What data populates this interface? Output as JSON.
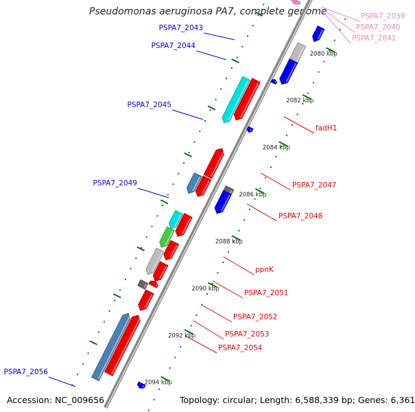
{
  "title": "Pseudomonas aeruginosa PA7, complete genome",
  "footer": {
    "accession": "Accession: NC_009656",
    "topology": "Topology: circular; Length: 6,588,339 bp; Genes: 6,361"
  },
  "colors": {
    "blue": "#0000ee",
    "red": "#ee0000",
    "cyan": "#00e0e0",
    "gray": "#bbbbbb",
    "darkgray": "#666666",
    "steelblue": "#4a82b4",
    "green": "#44cc44",
    "pink": "#ee88bb",
    "tick": "#007700"
  },
  "ticks": [
    {
      "kbp": 2080,
      "label": "2080 kbp"
    },
    {
      "kbp": 2082,
      "label": "2082 kbp"
    },
    {
      "kbp": 2084,
      "label": "2084 kbp"
    },
    {
      "kbp": 2086,
      "label": "2086 kbp"
    },
    {
      "kbp": 2088,
      "label": "2088 kbp"
    },
    {
      "kbp": 2090,
      "label": "2090 kbp"
    },
    {
      "kbp": 2092,
      "label": "2092 kbp"
    },
    {
      "kbp": 2094,
      "label": "2094 kbp"
    }
  ],
  "labels": [
    {
      "name": "PSPA7_2039",
      "color": "pink"
    },
    {
      "name": "PSPA7_2040",
      "color": "pink"
    },
    {
      "name": "PSPA7_2041",
      "color": "pink"
    },
    {
      "name": "PSPA7_2043",
      "color": "blue"
    },
    {
      "name": "PSPA7_2044",
      "color": "blue"
    },
    {
      "name": "PSPA7_2045",
      "color": "blue"
    },
    {
      "name": "PSPA7_2049",
      "color": "blue"
    },
    {
      "name": "PSPA7_2056",
      "color": "blue"
    },
    {
      "name": "fadH1",
      "color": "red"
    },
    {
      "name": "PSPA7_2047",
      "color": "red"
    },
    {
      "name": "PSPA7_2048",
      "color": "red"
    },
    {
      "name": "ppnK",
      "color": "red"
    },
    {
      "name": "PSPA7_2051",
      "color": "red"
    },
    {
      "name": "PSPA7_2052",
      "color": "red"
    },
    {
      "name": "PSPA7_2053",
      "color": "red"
    },
    {
      "name": "PSPA7_2054",
      "color": "red"
    }
  ],
  "features": [
    {
      "ring": 1,
      "start": 2080.3,
      "end": 2081.2,
      "color": "gray"
    },
    {
      "ring": 1,
      "start": 2081.0,
      "end": 2082.0,
      "color": "blue",
      "dir": 1
    },
    {
      "ring": 2,
      "start": 2079.4,
      "end": 2080.0,
      "color": "blue",
      "dir": 1
    },
    {
      "ring": 0,
      "start": 2081.95,
      "end": 2082.1,
      "color": "blue",
      "dir": -1
    },
    {
      "ring": 0,
      "start": 2084.0,
      "end": 2084.2,
      "color": "blue",
      "dir": 1
    },
    {
      "ring": -1,
      "start": 2082.3,
      "end": 2084.0,
      "color": "red",
      "dir": 1
    },
    {
      "ring": -2,
      "start": 2082.4,
      "end": 2084.3,
      "color": "cyan",
      "dir": 1
    },
    {
      "ring": -1,
      "start": 2085.2,
      "end": 2086.4,
      "color": "red",
      "dir": -1
    },
    {
      "ring": -1,
      "start": 2086.45,
      "end": 2087.25,
      "color": "red",
      "dir": 1
    },
    {
      "ring": -2,
      "start": 2086.5,
      "end": 2087.3,
      "color": "steelblue",
      "dir": 1
    },
    {
      "ring": 1,
      "start": 2086.4,
      "end": 2087.0,
      "color": "darkgray"
    },
    {
      "ring": 1,
      "start": 2086.6,
      "end": 2087.5,
      "color": "blue",
      "dir": 1
    },
    {
      "ring": -1,
      "start": 2088.05,
      "end": 2088.95,
      "color": "red",
      "dir": 1
    },
    {
      "ring": -2,
      "start": 2088.1,
      "end": 2088.8,
      "color": "cyan",
      "dir": 1
    },
    {
      "ring": -1,
      "start": 2089.2,
      "end": 2089.95,
      "color": "red",
      "dir": 1
    },
    {
      "ring": -2,
      "start": 2088.8,
      "end": 2089.6,
      "color": "green",
      "dir": 1
    },
    {
      "ring": -1,
      "start": 2090.1,
      "end": 2090.85,
      "color": "red",
      "dir": 1
    },
    {
      "ring": -2,
      "start": 2089.7,
      "end": 2090.75,
      "color": "gray",
      "dir": 1
    },
    {
      "ring": -1,
      "start": 2090.85,
      "end": 2091.05,
      "color": "red",
      "dir": -1
    },
    {
      "ring": -2,
      "start": 2091.05,
      "end": 2091.3,
      "color": "darkgray"
    },
    {
      "ring": -1,
      "start": 2091.3,
      "end": 2092.1,
      "color": "red",
      "dir": 1
    },
    {
      "ring": -1,
      "start": 2092.3,
      "end": 2094.8,
      "color": "red",
      "dir": -1
    },
    {
      "ring": -2,
      "start": 2092.4,
      "end": 2095.2,
      "color": "steelblue",
      "dir": -1
    },
    {
      "ring": 2,
      "start": 2094.55,
      "end": 2094.75,
      "color": "blue",
      "dir": 1
    },
    {
      "ring": -1,
      "start": 2078.9,
      "end": 2079.05,
      "color": "pink",
      "dir": 1
    }
  ]
}
